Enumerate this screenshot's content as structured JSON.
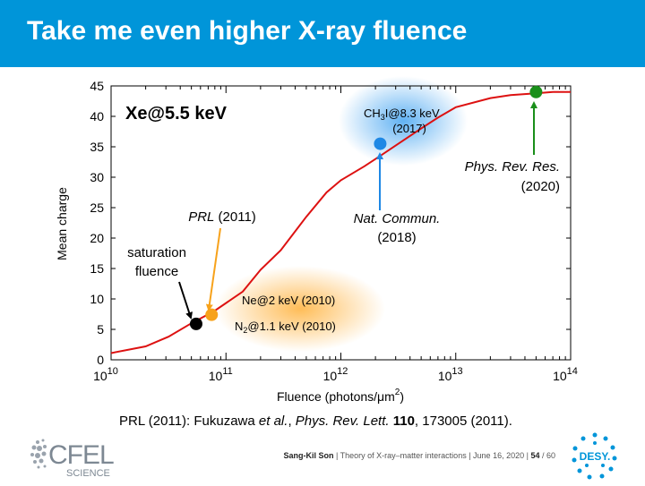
{
  "slide": {
    "title": "Take me even higher X-ray fluence",
    "reference": {
      "prefix": "PRL (2011): Fukuzawa ",
      "et_al": "et al.",
      "mid": ", ",
      "journal": "Phys. Rev. Lett.",
      "space": " ",
      "volume": "110",
      "suffix": ", 173005 (2011)."
    },
    "footer": {
      "author": "Sang-Kil Son",
      "talk": "Theory of X-ray–matter interactions",
      "date": "June 16, 2020",
      "page": "54",
      "total": "60"
    },
    "logos": {
      "left_main": "CFEL",
      "left_sub": "SCIENCE",
      "right": "DESY."
    }
  },
  "chart_data": {
    "type": "line",
    "title": "Xe@5.5 keV",
    "xlabel": "Fluence (photons/μm²)",
    "ylabel": "Mean charge",
    "xscale": "log",
    "xlim": [
      10000000000.0,
      100000000000000.0
    ],
    "ylim": [
      0,
      45
    ],
    "x_ticks": [
      {
        "value": 10000000000.0,
        "mantissa": "10",
        "exp": "10"
      },
      {
        "value": 100000000000.0,
        "mantissa": "10",
        "exp": "11"
      },
      {
        "value": 1000000000000.0,
        "mantissa": "10",
        "exp": "12"
      },
      {
        "value": 10000000000000.0,
        "mantissa": "10",
        "exp": "13"
      },
      {
        "value": 100000000000000.0,
        "mantissa": "10",
        "exp": "14"
      }
    ],
    "y_ticks": [
      0,
      5,
      10,
      15,
      20,
      25,
      30,
      35,
      40,
      45
    ],
    "grid": false,
    "series": [
      {
        "color": "#dd1111",
        "x": [
          10000000000.0,
          20000000000.0,
          31600000000.0,
          50000000000.0,
          79000000000.0,
          140000000000.0,
          200000000000.0,
          300000000000.0,
          500000000000.0,
          750000000000.0,
          1000000000000.0,
          1600000000000.0,
          2200000000000.0,
          3000000000000.0,
          5000000000000.0,
          7000000000000.0,
          10000000000000.0,
          20000000000000.0,
          30000000000000.0,
          50000000000000.0,
          70000000000000.0,
          100000000000000.0
        ],
        "y": [
          1.1,
          2.2,
          3.8,
          6.0,
          8.0,
          11.2,
          14.8,
          18.0,
          23.5,
          27.5,
          29.5,
          31.8,
          33.5,
          35.2,
          38.0,
          39.8,
          41.5,
          43.0,
          43.5,
          43.8,
          44.0,
          44.0
        ]
      }
    ],
    "markers": [
      {
        "label": "saturation fluence",
        "x": 55000000000.0,
        "y": 5.9,
        "color": "#000000"
      },
      {
        "label": "PRL (2011)",
        "x": 75000000000.0,
        "y": 7.4,
        "color": "#f7a21b"
      },
      {
        "label": "Nat. Commun. (2018)",
        "x": 2200000000000.0,
        "y": 35.5,
        "color": "#1e88e5"
      },
      {
        "label": "Phys. Rev. Res. (2020)",
        "x": 50000000000000.0,
        "y": 44.0,
        "color": "#1a8f1a"
      }
    ],
    "annotations": {
      "saturation": [
        "saturation",
        "fluence"
      ],
      "prl": {
        "italic": "PRL",
        "rest": " (2011)"
      },
      "nat": [
        "Nat. Commun.",
        "(2018)"
      ],
      "prr": [
        "Phys. Rev. Res.",
        "(2020)"
      ],
      "ch3i": {
        "pre": "CH",
        "sub": "3",
        "post": "I@8.3 keV",
        "line2": "(2017)",
        "glow": "#3a9ff0"
      },
      "ne": {
        "text": "Ne@2 keV (2010)",
        "glow": "#ffb13a"
      },
      "n2": {
        "pre": "N",
        "sub": "2",
        "post": "@1.1 keV (2010)"
      }
    }
  }
}
